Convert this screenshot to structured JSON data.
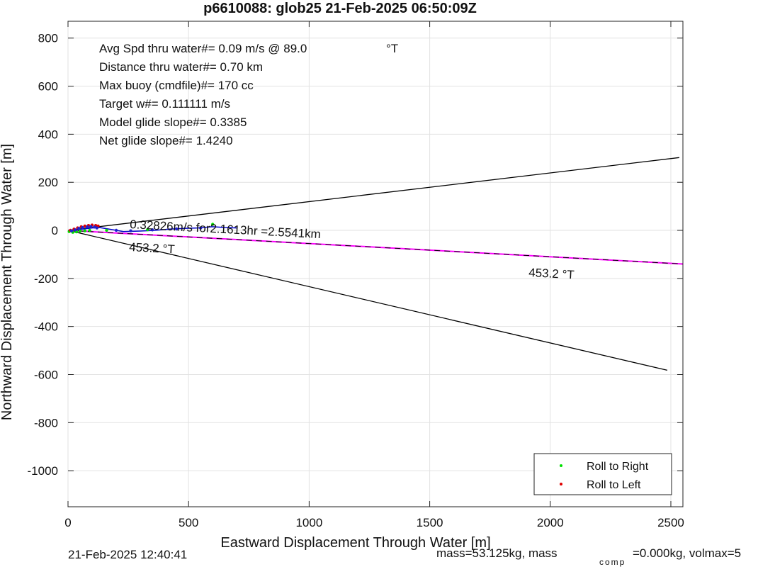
{
  "chart_data": {
    "type": "scatter",
    "title": "p6610088: glob25 21-Feb-2025 06:50:09Z",
    "xlabel": "Eastward Displacement Through Water [m]",
    "ylabel": "Northward Displacement Through Water [m]",
    "xlim": [
      0,
      2550
    ],
    "ylim": [
      -1150,
      870
    ],
    "xticks": [
      0,
      500,
      1000,
      1500,
      2000,
      2500
    ],
    "yticks": [
      800,
      600,
      400,
      200,
      0,
      -200,
      -400,
      -600,
      -800,
      -1000
    ],
    "grid": true,
    "legend_position": "bottom-right",
    "legend": [
      {
        "name": "Roll to Right",
        "color": "#00e000"
      },
      {
        "name": "Roll to Left",
        "color": "#e00000"
      }
    ],
    "info_lines": [
      "Avg Spd thru water#=  0.09 m/s @  89.0",
      "Distance thru water#=  0.70 km",
      "Max buoy (cmdfile)#= 170 cc",
      "Target w#= 0.111111 m/s",
      "Model glide slope#= 0.3385",
      "Net glide slope#= 1.4240"
    ],
    "info_unit": "°T",
    "annotations": {
      "track_label": "0.32826m/s for2.1613hr =2.5541km",
      "heading_label_1": "453.2  °T",
      "heading_label_2": "453.2  °T"
    },
    "lines": [
      {
        "name": "upper-bound",
        "color": "#000000",
        "points": [
          [
            0,
            0
          ],
          [
            2535,
            303
          ]
        ]
      },
      {
        "name": "lower-bound",
        "color": "#000000",
        "points": [
          [
            0,
            0
          ],
          [
            2485,
            -582
          ]
        ]
      },
      {
        "name": "projected-track",
        "color": "#ff00ff",
        "points": [
          [
            0,
            0
          ],
          [
            2550,
            -140
          ]
        ]
      },
      {
        "name": "projected-track-dashed",
        "color": "#000000",
        "points": [
          [
            0,
            0
          ],
          [
            2550,
            -140
          ]
        ]
      },
      {
        "name": "dive-track",
        "color": "#0000cc",
        "points": [
          [
            0,
            -5
          ],
          [
            30,
            0
          ],
          [
            60,
            5
          ],
          [
            100,
            10
          ],
          [
            130,
            12
          ],
          [
            170,
            5
          ],
          [
            230,
            -5
          ],
          [
            300,
            -3
          ],
          [
            360,
            0
          ],
          [
            420,
            5
          ],
          [
            480,
            8
          ],
          [
            540,
            10
          ],
          [
            600,
            15
          ],
          [
            650,
            12
          ],
          [
            700,
            10
          ]
        ]
      }
    ],
    "series": [
      {
        "name": "Roll to Right",
        "color": "#00e000",
        "points": [
          [
            5,
            -5
          ],
          [
            20,
            -8
          ],
          [
            35,
            -6
          ],
          [
            50,
            -3
          ],
          [
            70,
            -2
          ],
          [
            90,
            0
          ],
          [
            160,
            0
          ],
          [
            330,
            3
          ],
          [
            600,
            25
          ]
        ]
      },
      {
        "name": "Roll to Left",
        "color": "#e00000",
        "points": [
          [
            10,
            0
          ],
          [
            25,
            5
          ],
          [
            40,
            10
          ],
          [
            55,
            15
          ],
          [
            70,
            18
          ],
          [
            85,
            20
          ],
          [
            100,
            22
          ],
          [
            115,
            20
          ],
          [
            125,
            18
          ]
        ]
      },
      {
        "name": "Unclassified",
        "color": "#2020d0",
        "points": [
          [
            15,
            -2
          ],
          [
            30,
            2
          ],
          [
            45,
            8
          ],
          [
            60,
            12
          ],
          [
            80,
            15
          ],
          [
            95,
            16
          ],
          [
            110,
            14
          ],
          [
            120,
            10
          ],
          [
            200,
            0
          ],
          [
            260,
            -2
          ],
          [
            350,
            2
          ],
          [
            450,
            6
          ],
          [
            550,
            10
          ]
        ]
      }
    ]
  },
  "footer": {
    "timestamp": "21-Feb-2025 12:40:41",
    "mass_text": "mass=53.125kg, mass",
    "comp_subscript": "comp",
    "tail_text": "=0.000kg, volmax=5"
  }
}
